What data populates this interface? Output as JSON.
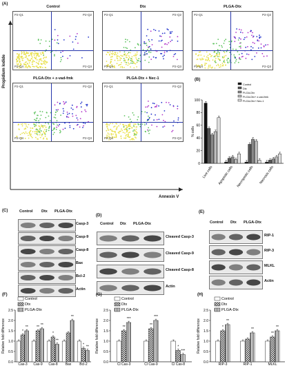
{
  "panels": {
    "A": "(A)",
    "B": "(B)",
    "C": "(C)",
    "D": "(D)",
    "E": "(E)",
    "F": "(F)",
    "G": "(G)",
    "H": "(H)"
  },
  "flow": {
    "yaxis": "Propidium Iodide",
    "xaxis": "Annexin V",
    "quadrants": [
      "P2-Q1",
      "P2-Q2",
      "P2-Q3",
      "P2-Q4"
    ],
    "plots": [
      {
        "title": "Control"
      },
      {
        "title": "Dtx"
      },
      {
        "title": "PLGA-Dtx"
      },
      {
        "title": "PLGA-Dtx  + z-vad-fmk"
      },
      {
        "title": "PLGA-Dtx  + Nec-1"
      }
    ]
  },
  "blotC": {
    "lanes": [
      "Control",
      "Dtx",
      "PLGA-Dtx"
    ],
    "bands": [
      "Casp-3",
      "Casp-9",
      "Casp-8",
      "Bax",
      "Bcl-2",
      "Actin"
    ]
  },
  "blotD": {
    "lanes": [
      "Control",
      "Dtx",
      "PLGA-Dtx"
    ],
    "bands": [
      "Cleaved Casp-3",
      "Cleaved Casp-9",
      "Cleaved Casp-8",
      "Actin"
    ]
  },
  "blotE": {
    "lanes": [
      "Control",
      "Dtx",
      "PLGA-Dtx"
    ],
    "bands": [
      "RIP-1",
      "RIP-3",
      "MLKL",
      "Actin"
    ]
  },
  "colors": {
    "gray": "#9a9a9a",
    "lightgray": "#d8d8d8",
    "dark": "#333333",
    "blue": "#2233aa"
  },
  "chart_data": [
    {
      "panel": "B",
      "type": "bar",
      "categories": [
        "Live cells",
        "Apoptotic cells",
        "Necroptotic cells",
        "Necrosis cells"
      ],
      "series": [
        {
          "name": "Control",
          "values": [
            95,
            2,
            2,
            2
          ]
        },
        {
          "name": "Dtx",
          "values": [
            55,
            8,
            30,
            5
          ]
        },
        {
          "name": "PLGA-Dtx",
          "values": [
            45,
            10,
            38,
            7
          ]
        },
        {
          "name": "PLGA-Dtx+ z-vad-fmk",
          "values": [
            50,
            6,
            35,
            10
          ]
        },
        {
          "name": "PLGA-Dtx+ Nec-1",
          "values": [
            72,
            15,
            5,
            15
          ]
        }
      ],
      "ylabel": "% cells",
      "ylim": [
        0,
        100
      ],
      "yticks": [
        0,
        20,
        40,
        60,
        80,
        100
      ],
      "legend": "top-right"
    },
    {
      "panel": "F",
      "type": "bar",
      "categories": [
        "Cas-3",
        "Cas-9",
        "Cas-8",
        "Bax",
        "Bcl-2"
      ],
      "series": [
        {
          "name": "Control",
          "values": [
            1.0,
            1.0,
            1.0,
            1.0,
            1.0
          ]
        },
        {
          "name": "Dtx",
          "values": [
            1.3,
            1.5,
            1.2,
            1.4,
            0.65
          ]
        },
        {
          "name": "PLGA-Dtx",
          "values": [
            1.5,
            1.6,
            0.85,
            2.0,
            0.55
          ]
        }
      ],
      "annotations": [
        [
          "",
          "*",
          "**"
        ],
        [
          "",
          "**",
          "**"
        ],
        [
          "",
          "*",
          "**"
        ],
        [
          "",
          "",
          ""
        ],
        [
          "",
          "*",
          "**"
        ]
      ],
      "top_annotation": "**",
      "ylabel": "Relative fold difference",
      "ylim": [
        0,
        2.5
      ],
      "yticks": [
        0.0,
        0.5,
        1.0,
        1.5,
        2.0,
        2.5
      ],
      "legend": "top-left"
    },
    {
      "panel": "G",
      "type": "bar",
      "categories": [
        "Cl Cas-3",
        "Cl Cas-9",
        "Cl Cas-8"
      ],
      "series": [
        {
          "name": "Control",
          "values": [
            1.0,
            1.0,
            1.0
          ]
        },
        {
          "name": "Dtx",
          "values": [
            1.5,
            1.6,
            0.55
          ]
        },
        {
          "name": "PLGA-Dtx",
          "values": [
            1.9,
            2.0,
            0.35
          ]
        }
      ],
      "annotations": [
        [
          "",
          "**",
          "***"
        ],
        [
          "",
          "**",
          "***"
        ],
        [
          "",
          "*",
          "***"
        ]
      ],
      "ylabel": "Relative fold difference",
      "ylim": [
        0,
        2.5
      ],
      "yticks": [
        0.0,
        0.5,
        1.0,
        1.5,
        2.0,
        2.5
      ],
      "legend": "top-left"
    },
    {
      "panel": "H",
      "type": "bar",
      "categories": [
        "RIP-3",
        "RIP-1",
        "MLKL"
      ],
      "series": [
        {
          "name": "Control",
          "values": [
            1.0,
            1.0,
            1.0
          ]
        },
        {
          "name": "Dtx",
          "values": [
            1.5,
            1.1,
            1.2
          ]
        },
        {
          "name": "PLGA-Dtx",
          "values": [
            1.8,
            1.4,
            1.5
          ]
        }
      ],
      "annotations": [
        [
          "",
          "*",
          "**"
        ],
        [
          "",
          "",
          "**"
        ],
        [
          "",
          "**",
          "**"
        ]
      ],
      "ylabel": "Relative fold difference",
      "ylim": [
        0,
        2.5
      ],
      "yticks": [
        0.0,
        0.5,
        1.0,
        1.5,
        2.0,
        2.5
      ],
      "legend": "top-left"
    }
  ]
}
